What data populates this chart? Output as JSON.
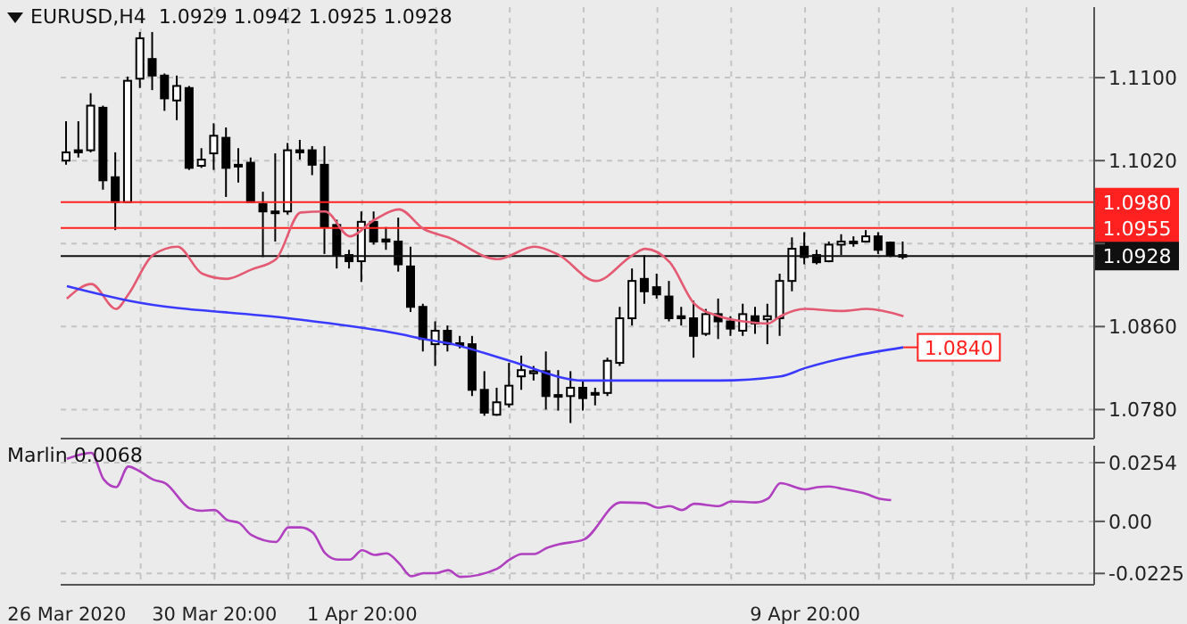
{
  "chart_data": [
    {
      "type": "candlestick",
      "title": "EURUSD,H4  1.0929 1.0942 1.0925 1.0928",
      "color": "#000000",
      "categories": [
        null,
        null,
        null,
        null,
        null,
        null,
        null,
        null,
        null,
        null,
        null,
        null,
        null,
        null,
        null,
        null,
        null,
        null,
        null,
        null,
        null,
        null,
        null,
        null,
        null,
        null,
        null,
        null,
        null,
        null,
        null,
        null,
        null,
        null,
        null,
        null,
        null,
        null,
        null,
        null,
        null,
        null,
        null,
        null,
        null,
        null,
        null,
        null,
        null,
        null,
        null,
        null,
        null,
        null,
        null,
        null,
        null,
        null,
        null,
        null,
        null,
        null,
        null,
        null,
        null,
        null,
        null,
        null,
        null,
        null,
        null,
        null,
        null,
        null,
        null,
        null,
        null,
        null,
        null,
        null,
        null,
        null,
        null,
        null
      ],
      "ohlc": [
        [
          1.102,
          1.1058,
          1.1016,
          1.1028
        ],
        [
          1.103,
          1.1058,
          1.1023,
          1.1028
        ],
        [
          1.103,
          1.1085,
          1.1028,
          1.1073
        ],
        [
          1.1071,
          1.1073,
          1.0992,
          1.1001
        ],
        [
          1.1004,
          1.1028,
          1.0953,
          1.098
        ],
        [
          1.098,
          1.1101,
          1.098,
          1.1097
        ],
        [
          1.1099,
          1.1144,
          1.109,
          1.1138
        ],
        [
          1.1118,
          1.1144,
          1.1088,
          1.1102
        ],
        [
          1.1102,
          1.1104,
          1.1068,
          1.108
        ],
        [
          1.1078,
          1.1102,
          1.1059,
          1.1092
        ],
        [
          1.109,
          1.1092,
          1.1011,
          1.1013
        ],
        [
          1.1015,
          1.1032,
          1.1013,
          1.1021
        ],
        [
          1.1027,
          1.1056,
          1.1011,
          1.1044
        ],
        [
          1.1042,
          1.1052,
          1.0985,
          1.1013
        ],
        [
          1.1016,
          1.1032,
          1.0999,
          1.1015
        ],
        [
          1.1018,
          1.1023,
          1.098,
          1.098
        ],
        [
          1.0978,
          1.099,
          1.0927,
          1.0971
        ],
        [
          1.0971,
          1.1027,
          1.0942,
          1.097
        ],
        [
          1.0971,
          1.1037,
          1.0968,
          1.103
        ],
        [
          1.103,
          1.104,
          1.1021,
          1.1028
        ],
        [
          1.103,
          1.1034,
          1.1006,
          1.1016
        ],
        [
          1.1016,
          1.1034,
          1.093,
          1.0956
        ],
        [
          1.0958,
          1.0963,
          1.0916,
          1.0929
        ],
        [
          1.0929,
          1.0934,
          1.0916,
          1.0923
        ],
        [
          1.0923,
          1.0971,
          1.0903,
          1.0961
        ],
        [
          1.0961,
          1.0971,
          1.0939,
          1.0942
        ],
        [
          1.0944,
          1.0956,
          1.0934,
          1.0942
        ],
        [
          1.0942,
          1.0965,
          1.0913,
          1.092
        ],
        [
          1.0918,
          1.0937,
          1.0874,
          1.0879
        ],
        [
          1.0879,
          1.0882,
          1.0836,
          1.0848
        ],
        [
          1.0843,
          1.0865,
          1.0822,
          1.0856
        ],
        [
          1.0856,
          1.0861,
          1.0836,
          1.0843
        ],
        [
          1.0844,
          1.0851,
          1.0839,
          1.0843
        ],
        [
          1.0843,
          1.0851,
          1.0793,
          1.0799
        ],
        [
          1.0799,
          1.0817,
          1.0774,
          1.0777
        ],
        [
          1.0775,
          1.0801,
          1.0774,
          1.0787
        ],
        [
          1.0785,
          1.0825,
          1.0782,
          1.0803
        ],
        [
          1.0812,
          1.0832,
          1.0799,
          1.0818
        ],
        [
          1.0815,
          1.0822,
          1.0808,
          1.0817
        ],
        [
          1.0817,
          1.0836,
          1.078,
          1.0793
        ],
        [
          1.0794,
          1.0818,
          1.0779,
          1.0794
        ],
        [
          1.0793,
          1.0817,
          1.0767,
          1.0801
        ],
        [
          1.0801,
          1.0808,
          1.0779,
          1.0791
        ],
        [
          1.0796,
          1.0801,
          1.0784,
          1.0796
        ],
        [
          1.0796,
          1.083,
          1.0793,
          1.0827
        ],
        [
          1.0825,
          1.0879,
          1.0822,
          1.0868
        ],
        [
          1.0868,
          1.0916,
          1.0861,
          1.0904
        ],
        [
          1.0906,
          1.0929,
          1.0882,
          1.0894
        ],
        [
          1.0898,
          1.0911,
          1.0887,
          1.0891
        ],
        [
          1.0889,
          1.0904,
          1.0865,
          1.0868
        ],
        [
          1.087,
          1.0879,
          1.0861,
          1.0868
        ],
        [
          1.0868,
          1.0885,
          1.083,
          1.0851
        ],
        [
          1.0853,
          1.0877,
          1.0851,
          1.0872
        ],
        [
          1.0872,
          1.0887,
          1.0848,
          1.0865
        ],
        [
          1.0865,
          1.087,
          1.0851,
          1.0858
        ],
        [
          1.0856,
          1.0882,
          1.0851,
          1.0872
        ],
        [
          1.087,
          1.0879,
          1.0853,
          1.0863
        ],
        [
          1.0867,
          1.0882,
          1.0843,
          1.087
        ],
        [
          1.0868,
          1.0911,
          1.0851,
          1.0904
        ],
        [
          1.0904,
          1.0946,
          1.0894,
          1.0935
        ],
        [
          1.0937,
          1.0951,
          1.092,
          1.0927
        ],
        [
          1.0929,
          1.0934,
          1.092,
          1.0922
        ],
        [
          1.0923,
          1.0942,
          1.0922,
          1.0939
        ],
        [
          1.0939,
          1.0949,
          1.0929,
          1.0942
        ],
        [
          1.0942,
          1.0947,
          1.0937,
          1.0941
        ],
        [
          1.0942,
          1.0953,
          1.0941,
          1.0947
        ],
        [
          1.0947,
          1.0951,
          1.093,
          1.0934
        ],
        [
          1.0941,
          1.0942,
          1.0927,
          1.0929
        ],
        [
          1.0929,
          1.0942,
          1.0925,
          1.0928
        ],
        null,
        null,
        null,
        null,
        null,
        null,
        null,
        null,
        null,
        null,
        null,
        null,
        null,
        null,
        null
      ],
      "series": [
        {
          "type": "line",
          "color": "#e45a72",
          "values": [
            1.0887,
            null,
            1.0901,
            null,
            1.0877,
            1.0891,
            null,
            1.0929,
            null,
            1.0937,
            null,
            1.0911,
            null,
            1.0906,
            null,
            1.0915,
            null,
            1.0925,
            null,
            1.097,
            null,
            1.0971,
            null,
            1.0947,
            null,
            1.0963,
            null,
            1.0973,
            null,
            1.0954,
            null,
            1.0946,
            null,
            null,
            null,
            1.0925,
            null,
            null,
            1.0937,
            null,
            1.0929,
            null,
            null,
            1.0904,
            null,
            null,
            1.0929,
            1.0935,
            null,
            1.0922,
            null,
            1.0882,
            null,
            1.087,
            null,
            1.0865,
            null,
            1.0863,
            1.087,
            null,
            1.0877,
            null,
            null,
            1.0875,
            null,
            1.0877,
            null,
            null,
            1.087,
            null,
            null,
            null,
            null,
            null,
            null,
            null,
            null,
            null,
            null,
            null,
            null,
            null,
            null,
            null
          ]
        },
        {
          "type": "line",
          "color": "#3a3aff",
          "values": [
            1.0899,
            null,
            null,
            null,
            null,
            1.0885,
            null,
            null,
            null,
            null,
            null,
            null,
            null,
            null,
            null,
            null,
            null,
            null,
            1.0868,
            null,
            null,
            null,
            null,
            null,
            null,
            null,
            null,
            1.0853,
            null,
            1.0848,
            null,
            1.0844,
            null,
            null,
            null,
            null,
            1.0827,
            null,
            null,
            null,
            null,
            null,
            1.0808,
            null,
            null,
            null,
            null,
            null,
            null,
            null,
            null,
            null,
            null,
            1.0808,
            null,
            null,
            null,
            null,
            1.0812,
            null,
            1.082,
            null,
            null,
            null,
            null,
            null,
            null,
            null,
            1.084,
            null,
            null,
            null,
            null,
            null,
            null,
            null,
            null,
            null,
            null,
            null,
            null,
            null,
            null,
            null
          ]
        }
      ],
      "ylim": [
        1.0752,
        1.1168
      ],
      "yticks": [
        {
          "value": 1.11,
          "label": "1.1100"
        },
        {
          "value": 1.102,
          "label": "1.1020"
        },
        {
          "value": 1.094,
          "label": null
        },
        {
          "value": 1.086,
          "label": "1.0860"
        },
        {
          "value": 1.078,
          "label": "1.0780"
        }
      ],
      "ref_lines": [
        {
          "axis": "y",
          "value": 1.098,
          "label": "1.0980",
          "color": "#ff2020"
        },
        {
          "axis": "y",
          "value": 1.0955,
          "label": "1.0955",
          "color": "#ff2020"
        },
        {
          "axis": "y",
          "value": 1.0928,
          "label": "1.0928",
          "color": "#101010"
        }
      ],
      "annotations": [
        "1.0840"
      ],
      "grid": true,
      "tick_labels": "y"
    },
    {
      "type": "line",
      "title": "Marlin 0.0068",
      "categories": [
        "26 Mar 2020",
        null,
        null,
        null,
        null,
        null,
        null,
        null,
        null,
        null,
        null,
        null,
        "30 Mar 20:00",
        null,
        null,
        null,
        null,
        null,
        null,
        null,
        null,
        null,
        null,
        null,
        "1 Apr 20:00",
        null,
        null,
        null,
        null,
        null,
        null,
        null,
        null,
        null,
        null,
        null,
        null,
        null,
        null,
        null,
        null,
        null,
        null,
        null,
        null,
        null,
        null,
        null,
        null,
        null,
        null,
        null,
        null,
        null,
        null,
        null,
        null,
        null,
        null,
        null,
        "9 Apr 20:00",
        null,
        null,
        null,
        null,
        null,
        null,
        null,
        null,
        null,
        null,
        null,
        null,
        null,
        null,
        null,
        null,
        null,
        null,
        null,
        null,
        null,
        null,
        null
      ],
      "series": [
        {
          "color": "#b040c0",
          "values": [
            0.027,
            null,
            0.0296,
            0.0181,
            0.0148,
            0.0237,
            0.0214,
            0.0181,
            0.0165,
            null,
            0.0056,
            0.0046,
            0.0049,
            0.0007,
            -0.0007,
            -0.0059,
            null,
            -0.0089,
            -0.0026,
            -0.0026,
            -0.0049,
            -0.0138,
            -0.0165,
            -0.0165,
            -0.0125,
            -0.0145,
            -0.0138,
            -0.0181,
            -0.0237,
            -0.0224,
            -0.0224,
            -0.0211,
            -0.024,
            null,
            null,
            -0.0204,
            -0.0165,
            -0.0141,
            -0.0141,
            -0.0115,
            -0.0099,
            null,
            -0.0079,
            null,
            null,
            0.0082,
            null,
            0.0079,
            0.0059,
            0.0066,
            0.0049,
            0.0076,
            null,
            0.0066,
            0.0086,
            null,
            0.0082,
            0.0099,
            0.0165,
            null,
            0.0138,
            0.0148,
            0.0151,
            0.0141,
            null,
            0.0118,
            0.0099,
            0.0092,
            null,
            null,
            null,
            null,
            null,
            null,
            null,
            null,
            null,
            null,
            null,
            null,
            null,
            null,
            null,
            null
          ]
        }
      ],
      "ylim": [
        -0.0274,
        0.0327
      ],
      "yticks": [
        0.0254,
        {
          "value": 0,
          "label": "0.00"
        },
        -0.0225
      ],
      "grid": true
    }
  ]
}
